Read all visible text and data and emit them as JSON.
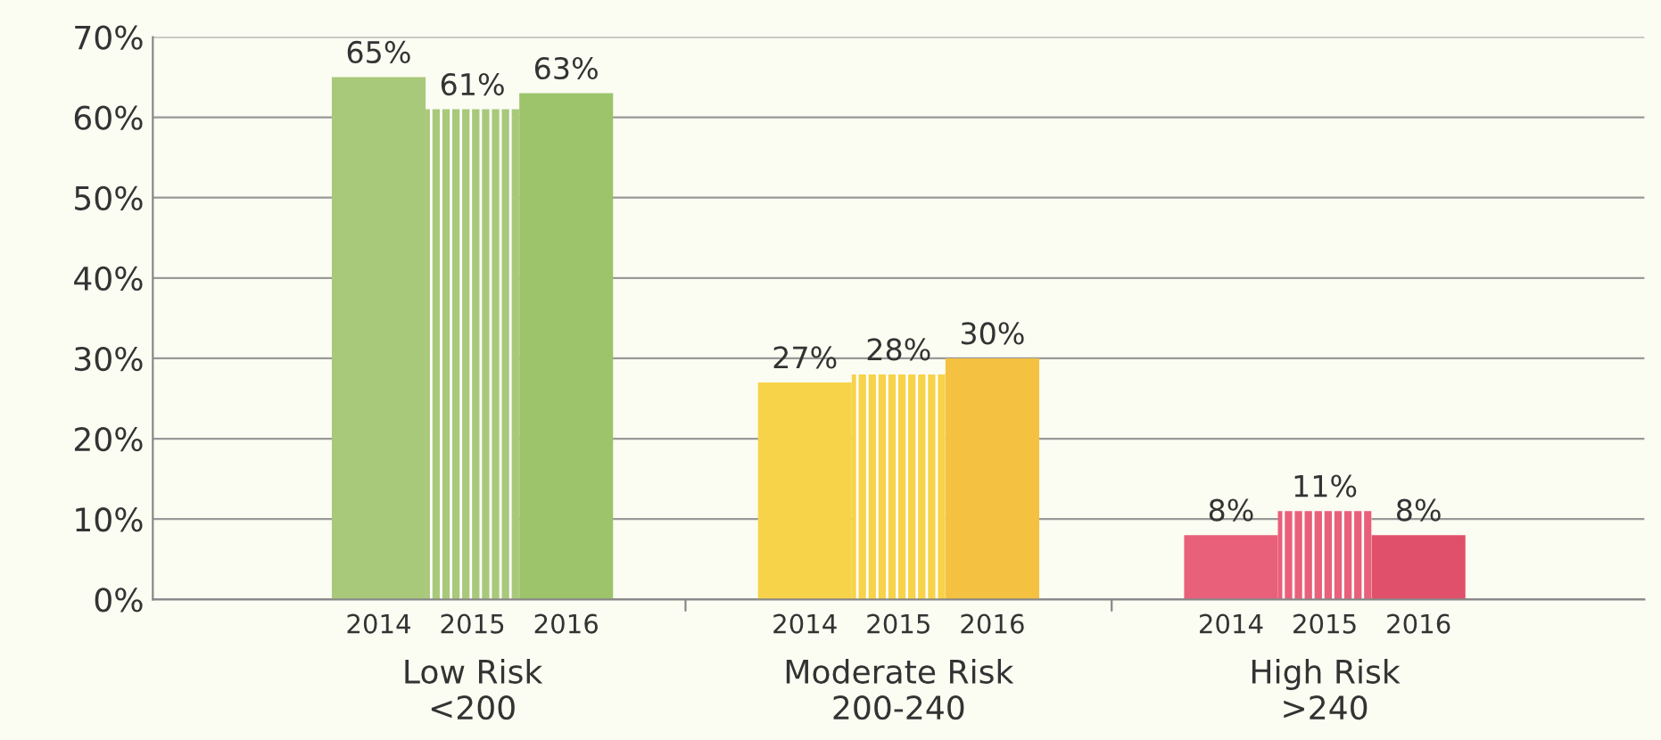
{
  "chart_data": {
    "type": "bar",
    "categories": [
      "Low Risk\n<200",
      "Moderate Risk\n200-240",
      "High Risk\n>240"
    ],
    "series": [
      {
        "name": "2014",
        "colors": [
          "#a9c97a",
          "#f7d34a",
          "#e8607a"
        ],
        "values": [
          65,
          27,
          8
        ],
        "value_labels": [
          "65%",
          "27%",
          "8%"
        ]
      },
      {
        "name": "2015",
        "colors": [
          "#a9c97a",
          "#f7d34a",
          "#e8607a"
        ],
        "values": [
          61,
          28,
          11
        ],
        "value_labels": [
          "61%",
          "28%",
          "11%"
        ]
      },
      {
        "name": "2016",
        "colors": [
          "#9dc46a",
          "#f4c141",
          "#e0506a"
        ],
        "values": [
          63,
          30,
          8
        ],
        "value_labels": [
          "63%",
          "30%",
          "8%"
        ]
      }
    ],
    "ylim": [
      0,
      70
    ],
    "yticks": [
      {
        "value": 0,
        "label": "0%"
      },
      {
        "value": 10,
        "label": "10%"
      },
      {
        "value": 20,
        "label": "20%"
      },
      {
        "value": 30,
        "label": "30%"
      },
      {
        "value": 40,
        "label": "40%"
      },
      {
        "value": 50,
        "label": "50%"
      },
      {
        "value": 60,
        "label": "60%"
      },
      {
        "value": 70,
        "label": "70%"
      }
    ],
    "grid": "y",
    "legend": false
  }
}
